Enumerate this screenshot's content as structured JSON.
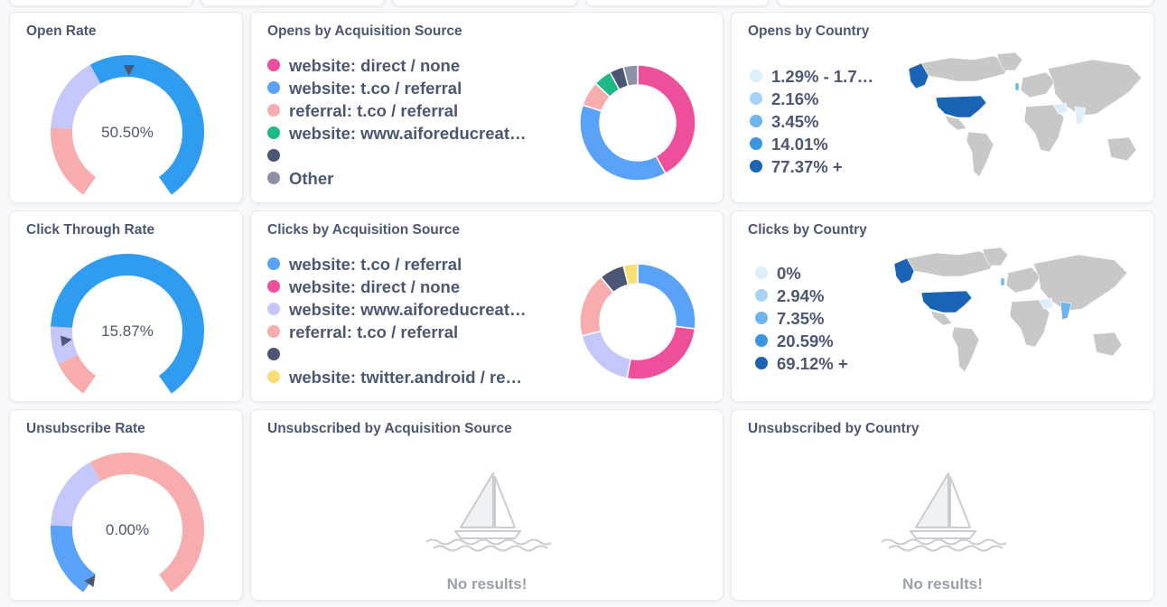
{
  "gauges": [
    {
      "title": "Open Rate",
      "value_label": "50.50%",
      "value": 50.5
    },
    {
      "title": "Click Through Rate",
      "value_label": "15.87%",
      "value": 15.87
    },
    {
      "title": "Unsubscribe Rate",
      "value_label": "0.00%",
      "value": 0.0
    }
  ],
  "acquisition": [
    {
      "title": "Opens by Acquisition Source",
      "legend": [
        {
          "label": "website: direct / none",
          "color": "#ed4f9b"
        },
        {
          "label": "website: t.co / referral",
          "color": "#5aa1f8"
        },
        {
          "label": "referral: t.co / referral",
          "color": "#f7adad"
        },
        {
          "label": "website: www.aiforeducreat…",
          "color": "#1eb986"
        },
        {
          "label": "",
          "color": "#4b5574"
        },
        {
          "label": "Other",
          "color": "#8c92a5"
        }
      ]
    },
    {
      "title": "Clicks by Acquisition Source",
      "legend": [
        {
          "label": "website: t.co / referral",
          "color": "#5aa1f8"
        },
        {
          "label": "website: direct / none",
          "color": "#ed4f9b"
        },
        {
          "label": "website: www.aiforeducreat…",
          "color": "#c4c7f9"
        },
        {
          "label": "referral: t.co / referral",
          "color": "#f7adad"
        },
        {
          "label": "",
          "color": "#4b5574"
        },
        {
          "label": "website: twitter.android / re…",
          "color": "#f9dd76"
        }
      ]
    },
    {
      "title": "Unsubscribed by Acquisition Source",
      "empty_text": "No results!"
    }
  ],
  "countries": [
    {
      "title": "Opens by Country",
      "legend": [
        {
          "label": "1.29% - 1.7…",
          "color": "#ddeefb"
        },
        {
          "label": "2.16%",
          "color": "#a6d3f4"
        },
        {
          "label": "3.45%",
          "color": "#6fb4ea"
        },
        {
          "label": "14.01%",
          "color": "#3a95de"
        },
        {
          "label": "77.37% +",
          "color": "#1a64b5"
        }
      ]
    },
    {
      "title": "Clicks by Country",
      "legend": [
        {
          "label": "0%",
          "color": "#ddeefb"
        },
        {
          "label": "2.94%",
          "color": "#a6d3f4"
        },
        {
          "label": "7.35%",
          "color": "#6fb4ea"
        },
        {
          "label": "20.59%",
          "color": "#3a95de"
        },
        {
          "label": "69.12% +",
          "color": "#1a64b5"
        }
      ]
    },
    {
      "title": "Unsubscribed by Country",
      "empty_text": "No results!"
    }
  ],
  "chart_data": [
    {
      "type": "gauge",
      "title": "Open Rate",
      "value": 50.5,
      "segments": [
        {
          "color": "#f7adad",
          "fraction": 0.2
        },
        {
          "color": "#c4c7f9",
          "fraction": 0.2
        },
        {
          "color": "#2f9cf0",
          "fraction": 0.6
        }
      ]
    },
    {
      "type": "gauge",
      "title": "Click Through Rate",
      "value": 15.87,
      "segments": [
        {
          "color": "#f7adad",
          "fraction": 0.1
        },
        {
          "color": "#c4c7f9",
          "fraction": 0.1
        },
        {
          "color": "#2f9cf0",
          "fraction": 0.8
        }
      ]
    },
    {
      "type": "gauge",
      "title": "Unsubscribe Rate",
      "value": 0.0,
      "segments": [
        {
          "color": "#5aa1f8",
          "fraction": 0.2
        },
        {
          "color": "#c4c7f9",
          "fraction": 0.2
        },
        {
          "color": "#f7adad",
          "fraction": 0.6
        }
      ]
    },
    {
      "type": "pie",
      "title": "Opens by Acquisition Source",
      "slices": [
        {
          "label": "website: direct / none",
          "value": 42,
          "color": "#ed4f9b"
        },
        {
          "label": "website: t.co / referral",
          "value": 38,
          "color": "#5aa1f8"
        },
        {
          "label": "referral: t.co / referral",
          "value": 7,
          "color": "#f7adad"
        },
        {
          "label": "website: www.aiforeducreat…",
          "value": 5,
          "color": "#1eb986"
        },
        {
          "label": "",
          "value": 4,
          "color": "#4b5574"
        },
        {
          "label": "Other",
          "value": 4,
          "color": "#8c92a5"
        }
      ]
    },
    {
      "type": "pie",
      "title": "Clicks by Acquisition Source",
      "slices": [
        {
          "label": "website: t.co / referral",
          "value": 27,
          "color": "#5aa1f8"
        },
        {
          "label": "website: direct / none",
          "value": 26,
          "color": "#ed4f9b"
        },
        {
          "label": "website: www.aiforeducreat…",
          "value": 18,
          "color": "#c4c7f9"
        },
        {
          "label": "referral: t.co / referral",
          "value": 18,
          "color": "#f7adad"
        },
        {
          "label": "",
          "value": 7,
          "color": "#4b5574"
        },
        {
          "label": "website: twitter.android / re…",
          "value": 4,
          "color": "#f9dd76"
        }
      ]
    }
  ]
}
